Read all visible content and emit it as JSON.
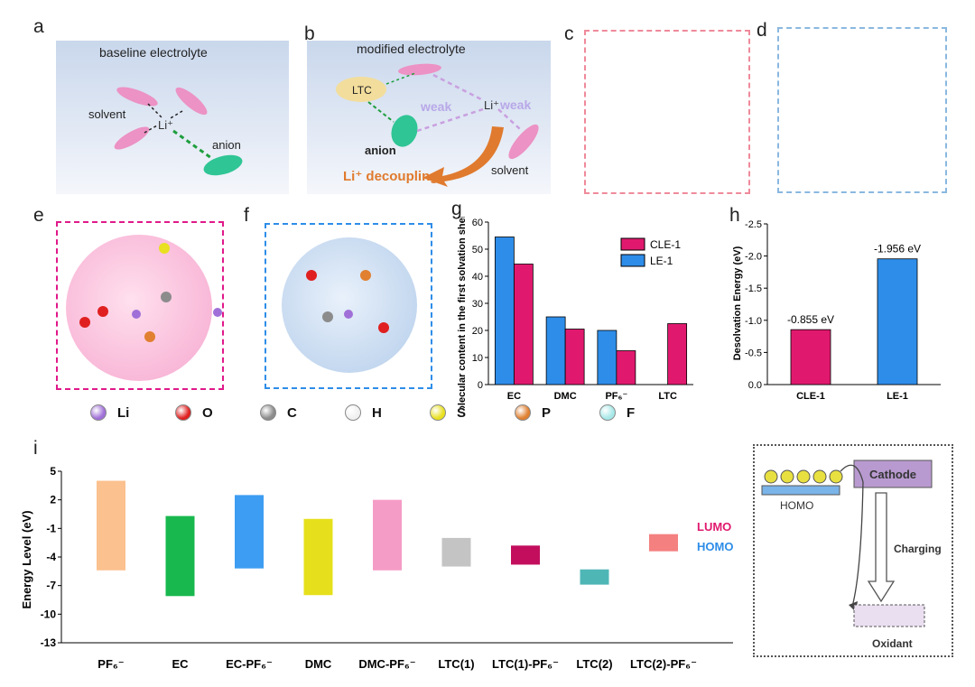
{
  "panel_labels": {
    "a": "a",
    "b": "b",
    "c": "c",
    "d": "d",
    "e": "e",
    "f": "f",
    "g": "g",
    "h": "h",
    "i": "i"
  },
  "panel_a": {
    "title": "baseline electrolyte",
    "solvent": "solvent",
    "li": "Li⁺",
    "anion": "anion"
  },
  "panel_b": {
    "title": "modified electrolyte",
    "ltc": "LTC",
    "weak1": "weak",
    "weak2": "weak",
    "li": "Li⁺",
    "anion": "anion",
    "solvent": "solvent",
    "decoupling": "Li⁺ decoupling"
  },
  "colors": {
    "cle": "#e0196e",
    "le": "#2e8de8",
    "li": "#a070d8",
    "o": "#e02020",
    "c": "#8c8c8c",
    "h": "#f0f0f0",
    "s": "#e8e020",
    "p": "#e08030",
    "f": "#a8e8e8"
  },
  "legend_atoms": [
    {
      "symbol": "Li",
      "color": "#a070d8"
    },
    {
      "symbol": "O",
      "color": "#e02020"
    },
    {
      "symbol": "C",
      "color": "#8c8c8c"
    },
    {
      "symbol": "H",
      "color": "#f0f0f0"
    },
    {
      "symbol": "S",
      "color": "#e8e020"
    },
    {
      "symbol": "P",
      "color": "#e08030"
    },
    {
      "symbol": "F",
      "color": "#a8e8e8"
    }
  ],
  "chart_data": [
    {
      "type": "bar",
      "ylabel": "Molecular content in the first solvation shell (%)",
      "categories": [
        "EC",
        "DMC",
        "PF₆⁻",
        "LTC"
      ],
      "series": [
        {
          "name": "CLE-1",
          "values": [
            44.5,
            20.5,
            12.5,
            22.5
          ]
        },
        {
          "name": "LE-1",
          "values": [
            54.5,
            25,
            20,
            0
          ]
        }
      ],
      "ylim": [
        0,
        60
      ],
      "yticks": [
        "0",
        "10",
        "20",
        "30",
        "40",
        "50",
        "60"
      ],
      "legend": "top-right"
    },
    {
      "type": "bar",
      "ylabel": "Desolvation Energy (eV)",
      "categories": [
        "CLE-1",
        "LE-1"
      ],
      "values": [
        -0.855,
        -1.956
      ],
      "data_labels": [
        "-0.855 eV",
        "-1.956 eV"
      ],
      "ylim": [
        0,
        -2.5
      ],
      "yticks": [
        "0.0",
        "-0.5",
        "-1.0",
        "-1.5",
        "-2.0",
        "-2.5"
      ]
    },
    {
      "type": "bar",
      "ylabel": "Energy Level (eV)",
      "categories": [
        "PF₆⁻",
        "EC",
        "EC-PF₆⁻",
        "DMC",
        "DMC-PF₆⁻",
        "LTC(1)",
        "LTC(1)-PF₆⁻",
        "LTC(2)",
        "LTC(2)-PF₆⁻"
      ],
      "lumo": [
        4,
        0.3,
        2.5,
        0,
        2,
        -2,
        -2.8,
        -5.3,
        -1.6
      ],
      "homo": [
        -5.4,
        -8.1,
        -5.2,
        -8,
        -5.4,
        -5,
        -4.8,
        -6.9,
        -3.4
      ],
      "colors": [
        "#fbc18f",
        "#18b84e",
        "#3d9df2",
        "#e6e01c",
        "#f59cc6",
        "#c4c4c4",
        "#c20e5d",
        "#4fb6b6",
        "#f48080"
      ],
      "ylim": [
        -13,
        5
      ],
      "yticks": [
        "5",
        "2",
        "-1",
        "-4",
        "-7",
        "-10",
        "-13"
      ],
      "legend": [
        "LUMO",
        "HOMO"
      ]
    }
  ],
  "panel_i_schematic": {
    "cathode": "Cathode",
    "homo": "HOMO",
    "charging": "Charging",
    "oxidant": "Oxidant"
  }
}
